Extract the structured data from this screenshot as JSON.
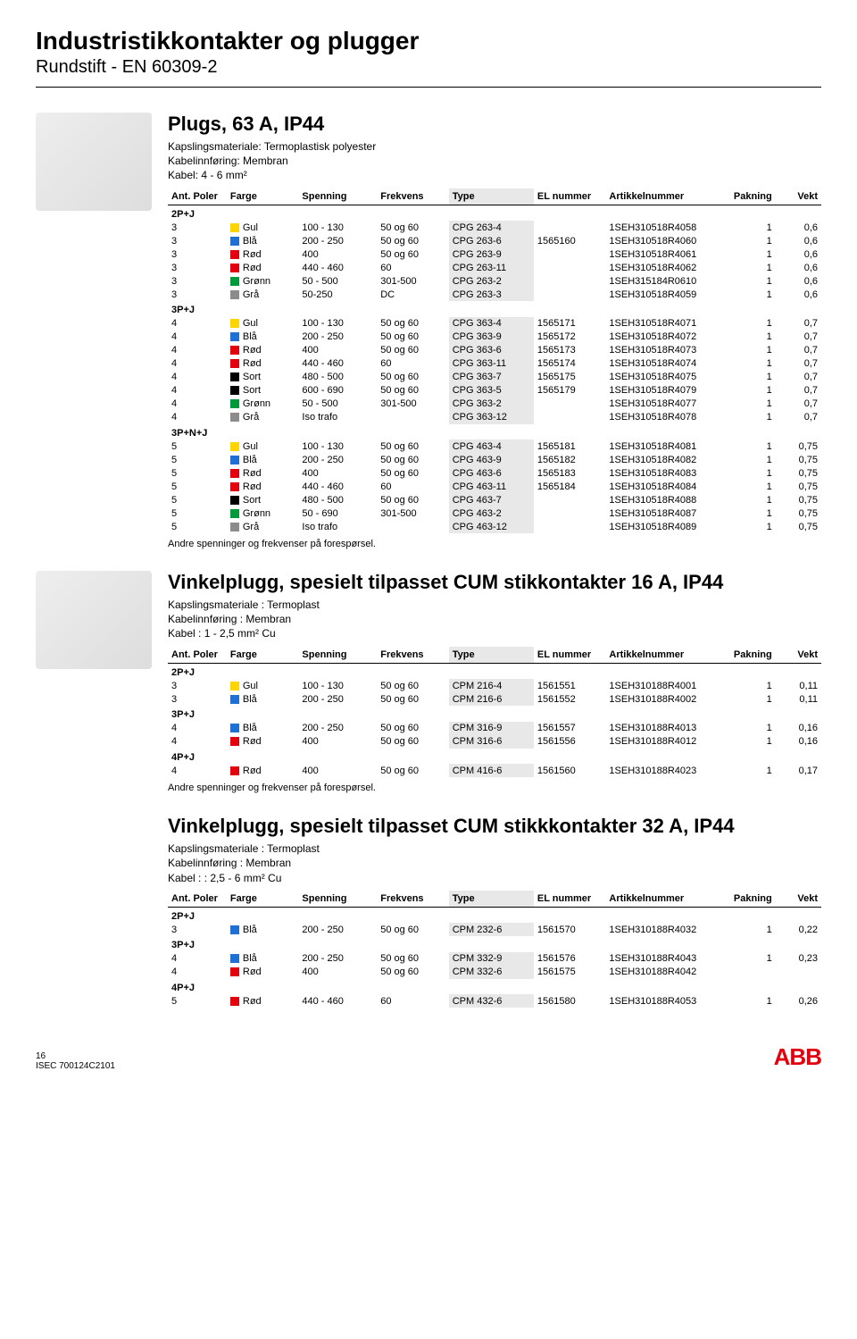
{
  "page": {
    "heading": "Industristikkontakter og plugger",
    "subheading": "Rundstift - EN 60309-2",
    "footer_page": "16",
    "footer_code": "ISEC 700124C2101",
    "footer_logo": "ABB"
  },
  "colors": {
    "Gul": "#ffd500",
    "Blå": "#1f6fd4",
    "Rød": "#e2000f",
    "Grønn": "#009a3d",
    "Grå": "#8c8c8c",
    "Sort": "#000000"
  },
  "columns": [
    "Ant. Poler",
    "Farge",
    "Spenning",
    "Frekvens",
    "Type",
    "EL nummer",
    "Artikkelnummer",
    "Pakning",
    "Vekt"
  ],
  "sections": [
    {
      "title": "Plugs, 63 A, IP44",
      "specs": [
        "Kapslingsmateriale: Termoplastisk polyester",
        "Kabelinnføring: Membran",
        "Kabel: 4 - 6 mm²"
      ],
      "note": "Andre spenninger og frekvenser på forespørsel.",
      "image": true,
      "groups": [
        {
          "label": "2P+J",
          "rows": [
            [
              "3",
              "Gul",
              "100 - 130",
              "50 og 60",
              "CPG 263-4",
              "",
              "1SEH310518R4058",
              "1",
              "0,6"
            ],
            [
              "3",
              "Blå",
              "200 - 250",
              "50 og 60",
              "CPG 263-6",
              "1565160",
              "1SEH310518R4060",
              "1",
              "0,6"
            ],
            [
              "3",
              "Rød",
              "400",
              "50 og 60",
              "CPG 263-9",
              "",
              "1SEH310518R4061",
              "1",
              "0,6"
            ],
            [
              "3",
              "Rød",
              "440 - 460",
              "60",
              "CPG 263-11",
              "",
              "1SEH310518R4062",
              "1",
              "0,6"
            ],
            [
              "3",
              "Grønn",
              "50 - 500",
              "301-500",
              "CPG 263-2",
              "",
              "1SEH315184R0610",
              "1",
              "0,6"
            ],
            [
              "3",
              "Grå",
              "50-250",
              "DC",
              "CPG 263-3",
              "",
              "1SEH310518R4059",
              "1",
              "0,6"
            ]
          ]
        },
        {
          "label": "3P+J",
          "rows": [
            [
              "4",
              "Gul",
              "100 - 130",
              "50 og 60",
              "CPG 363-4",
              "1565171",
              "1SEH310518R4071",
              "1",
              "0,7"
            ],
            [
              "4",
              "Blå",
              "200 - 250",
              "50 og 60",
              "CPG 363-9",
              "1565172",
              "1SEH310518R4072",
              "1",
              "0,7"
            ],
            [
              "4",
              "Rød",
              "400",
              "50 og 60",
              "CPG 363-6",
              "1565173",
              "1SEH310518R4073",
              "1",
              "0,7"
            ],
            [
              "4",
              "Rød",
              "440 - 460",
              "60",
              "CPG 363-11",
              "1565174",
              "1SEH310518R4074",
              "1",
              "0,7"
            ],
            [
              "4",
              "Sort",
              "480 - 500",
              "50 og 60",
              "CPG 363-7",
              "1565175",
              "1SEH310518R4075",
              "1",
              "0,7"
            ],
            [
              "4",
              "Sort",
              "600 - 690",
              "50 og 60",
              "CPG 363-5",
              "1565179",
              "1SEH310518R4079",
              "1",
              "0,7"
            ],
            [
              "4",
              "Grønn",
              "50 - 500",
              "301-500",
              "CPG 363-2",
              "",
              "1SEH310518R4077",
              "1",
              "0,7"
            ],
            [
              "4",
              "Grå",
              "Iso trafo",
              "",
              "CPG 363-12",
              "",
              "1SEH310518R4078",
              "1",
              "0,7"
            ]
          ]
        },
        {
          "label": "3P+N+J",
          "rows": [
            [
              "5",
              "Gul",
              "100 - 130",
              "50 og 60",
              "CPG 463-4",
              "1565181",
              "1SEH310518R4081",
              "1",
              "0,75"
            ],
            [
              "5",
              "Blå",
              "200 - 250",
              "50 og 60",
              "CPG 463-9",
              "1565182",
              "1SEH310518R4082",
              "1",
              "0,75"
            ],
            [
              "5",
              "Rød",
              "400",
              "50 og 60",
              "CPG 463-6",
              "1565183",
              "1SEH310518R4083",
              "1",
              "0,75"
            ],
            [
              "5",
              "Rød",
              "440 - 460",
              "60",
              "CPG 463-11",
              "1565184",
              "1SEH310518R4084",
              "1",
              "0,75"
            ],
            [
              "5",
              "Sort",
              "480 - 500",
              "50 og 60",
              "CPG 463-7",
              "",
              "1SEH310518R4088",
              "1",
              "0,75"
            ],
            [
              "5",
              "Grønn",
              "50 - 690",
              "301-500",
              "CPG 463-2",
              "",
              "1SEH310518R4087",
              "1",
              "0,75"
            ],
            [
              "5",
              "Grå",
              "Iso trafo",
              "",
              "CPG 463-12",
              "",
              "1SEH310518R4089",
              "1",
              "0,75"
            ]
          ]
        }
      ]
    },
    {
      "title": "Vinkelplugg, spesielt tilpasset CUM stikkontakter 16 A, IP44",
      "specs": [
        "Kapslingsmateriale : Termoplast",
        "Kabelinnføring : Membran",
        "Kabel : 1 - 2,5 mm² Cu"
      ],
      "note": "Andre spenninger og frekvenser på forespørsel.",
      "image": true,
      "groups": [
        {
          "label": "2P+J",
          "rows": [
            [
              "3",
              "Gul",
              "100 - 130",
              "50 og 60",
              "CPM 216-4",
              "1561551",
              "1SEH310188R4001",
              "1",
              "0,11"
            ],
            [
              "3",
              "Blå",
              "200 - 250",
              "50 og 60",
              "CPM 216-6",
              "1561552",
              "1SEH310188R4002",
              "1",
              "0,11"
            ]
          ]
        },
        {
          "label": "3P+J",
          "rows": [
            [
              "4",
              "Blå",
              "200 - 250",
              "50 og 60",
              "CPM 316-9",
              "1561557",
              "1SEH310188R4013",
              "1",
              "0,16"
            ],
            [
              "4",
              "Rød",
              "400",
              "50 og 60",
              "CPM 316-6",
              "1561556",
              "1SEH310188R4012",
              "1",
              "0,16"
            ]
          ]
        },
        {
          "label": "4P+J",
          "rows": [
            [
              "4",
              "Rød",
              "400",
              "50 og 60",
              "CPM 416-6",
              "1561560",
              "1SEH310188R4023",
              "1",
              "0,17"
            ]
          ]
        }
      ]
    },
    {
      "title": "Vinkelplugg, spesielt tilpasset CUM stikkkontakter 32 A, IP44",
      "specs": [
        "Kapslingsmateriale : Termoplast",
        "Kabelinnføring : Membran",
        "Kabel : : 2,5 - 6 mm² Cu"
      ],
      "note": "",
      "image": false,
      "groups": [
        {
          "label": "2P+J",
          "rows": [
            [
              "3",
              "Blå",
              "200 - 250",
              "50 og 60",
              "CPM 232-6",
              "1561570",
              "1SEH310188R4032",
              "1",
              "0,22"
            ]
          ]
        },
        {
          "label": "3P+J",
          "rows": [
            [
              "4",
              "Blå",
              "200 - 250",
              "50 og 60",
              "CPM 332-9",
              "1561576",
              "1SEH310188R4043",
              "1",
              "0,23"
            ],
            [
              "4",
              "Rød",
              "400",
              "50 og 60",
              "CPM 332-6",
              "1561575",
              "1SEH310188R4042",
              "",
              ""
            ]
          ]
        },
        {
          "label": "4P+J",
          "rows": [
            [
              "5",
              "Rød",
              "440 - 460",
              "60",
              "CPM 432-6",
              "1561580",
              "1SEH310188R4053",
              "1",
              "0,26"
            ]
          ]
        }
      ]
    }
  ]
}
